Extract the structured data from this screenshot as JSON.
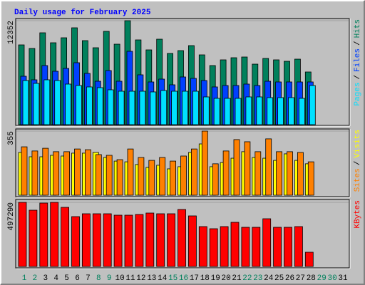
{
  "chart_data": [
    {
      "type": "bar",
      "title": "Daily usage for February 2025",
      "ylim": [
        0,
        12352
      ],
      "yticks": [
        12352
      ],
      "legend_separator": "/",
      "series": [
        {
          "name": "Hits",
          "color": "#00805c",
          "values": [
            9475,
            9052,
            10913,
            9729,
            10321,
            11506,
            9983,
            9137,
            11083,
            9560,
            12352,
            10067,
            8883,
            10152,
            8460,
            8798,
            9391,
            8291,
            7022,
            7699,
            7952,
            8037,
            7191,
            7868,
            7699,
            7529,
            7783,
            6260,
            null,
            null,
            null
          ]
        },
        {
          "name": "Files",
          "color": "#0040ff",
          "values": [
            5753,
            5330,
            7022,
            6345,
            6683,
            7360,
            6091,
            5161,
            6430,
            5161,
            8714,
            5922,
            5076,
            5414,
            4738,
            5668,
            5499,
            5245,
            4484,
            4653,
            4653,
            4822,
            4653,
            5161,
            5076,
            5076,
            5076,
            5076,
            null,
            null,
            null
          ]
        },
        {
          "name": "Pages",
          "color": "#00e0ff",
          "values": [
            5245,
            4907,
            5330,
            5245,
            4822,
            4653,
            4484,
            4399,
            4145,
            3976,
            3976,
            3976,
            3892,
            4061,
            3976,
            3976,
            3976,
            3299,
            3130,
            3130,
            3130,
            3299,
            3299,
            3215,
            3215,
            3215,
            3130,
            4653,
            null,
            null,
            null
          ]
        }
      ]
    },
    {
      "type": "bar",
      "ylim": [
        0,
        355
      ],
      "yticks": [
        355
      ],
      "legend_separator": "/",
      "series": [
        {
          "name": "Visits",
          "color": "#ffff00",
          "values": [
            237,
            213,
            213,
            221,
            217,
            233,
            233,
            237,
            209,
            189,
            185,
            170,
            154,
            166,
            146,
            158,
            237,
            284,
            158,
            181,
            205,
            241,
            209,
            205,
            193,
            229,
            193,
            174,
            null,
            null,
            null
          ]
        },
        {
          "name": "Sites",
          "color": "#ff8000",
          "values": [
            268,
            245,
            260,
            241,
            241,
            256,
            252,
            225,
            221,
            197,
            256,
            209,
            193,
            209,
            189,
            217,
            256,
            355,
            174,
            245,
            308,
            296,
            241,
            312,
            241,
            241,
            237,
            185,
            null,
            null,
            null
          ]
        }
      ]
    },
    {
      "type": "bar",
      "ylim": [
        0,
        497290
      ],
      "yticks": [
        497290
      ],
      "series": [
        {
          "name": "KBytes",
          "color": "#ff0000",
          "values": [
            497290,
            436510,
            491760,
            497290,
            458610,
            386780,
            408880,
            408880,
            408880,
            397830,
            397830,
            403350,
            414400,
            408880,
            408880,
            442030,
            392300,
            309420,
            292850,
            309420,
            342580,
            303900,
            303900,
            370200,
            303900,
            303900,
            309420,
            110510,
            null,
            null,
            null
          ]
        }
      ],
      "categories": [
        "1",
        "2",
        "3",
        "4",
        "5",
        "6",
        "7",
        "8",
        "9",
        "10",
        "11",
        "12",
        "13",
        "14",
        "15",
        "16",
        "17",
        "18",
        "19",
        "20",
        "21",
        "22",
        "23",
        "24",
        "25",
        "26",
        "27",
        "28",
        "29",
        "30",
        "31"
      ],
      "category_colors": [
        "#00805c",
        "#00805c",
        "#000000",
        "#000000",
        "#000000",
        "#000000",
        "#000000",
        "#00805c",
        "#00805c",
        "#000000",
        "#000000",
        "#000000",
        "#000000",
        "#000000",
        "#00805c",
        "#00805c",
        "#000000",
        "#000000",
        "#000000",
        "#000000",
        "#000000",
        "#00805c",
        "#00805c",
        "#000000",
        "#000000",
        "#000000",
        "#000000",
        "#000000",
        "#00805c",
        "#00805c",
        "#000000"
      ]
    }
  ]
}
